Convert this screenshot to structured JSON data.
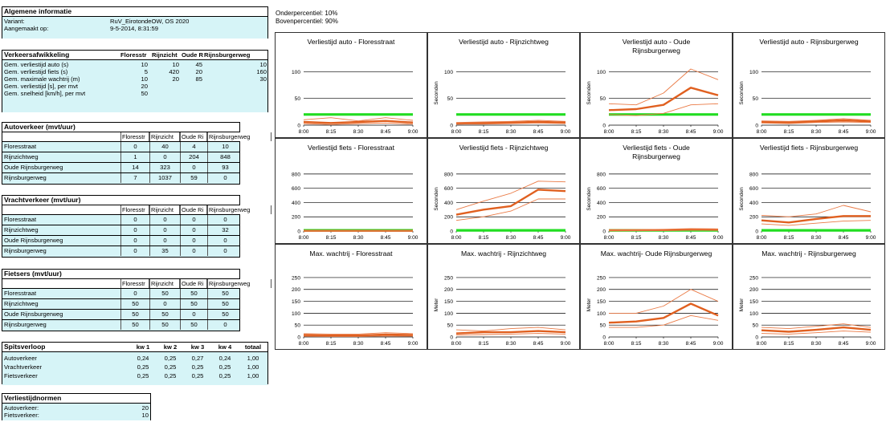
{
  "general": {
    "title": "Algemene informatie",
    "rows": [
      {
        "label": "Variant:",
        "value": "RuV_EirotondeOW, OS 2020"
      },
      {
        "label": "Aangemaakt op:",
        "value": "9-5-2014, 8:31:59"
      }
    ]
  },
  "percentiles": {
    "lower": "Onderpercentiel: 10%",
    "upper": "Bovenpercentiel: 90%"
  },
  "traffic": {
    "title": "Verkeersafwikkeling",
    "columns": [
      "Floresstr",
      "Rijnzicht",
      "Oude R",
      "Rijnsburgerweg"
    ],
    "rows": [
      {
        "label": "Gem. verliestijd auto (s)",
        "values": [
          "10",
          "10",
          "45",
          "10"
        ]
      },
      {
        "label": "Gem. verliestijd fiets (s)",
        "values": [
          "5",
          "420",
          "20",
          "160"
        ]
      },
      {
        "label": "Gem. maximale wachtrij (m)",
        "values": [
          "10",
          "20",
          "85",
          "30"
        ]
      },
      {
        "label": "Gem. verliestijd [s], per mvt",
        "values": [
          "20",
          "",
          "",
          ""
        ]
      },
      {
        "label": "Gem. snelheid [km/h], per mvt",
        "values": [
          "50",
          "",
          "",
          ""
        ]
      }
    ]
  },
  "matrices": [
    {
      "title": "Autoverkeer (mvt/uur)",
      "columns": [
        "Floresstr",
        "Rijnzicht",
        "Oude Ri",
        "Rijnsburgerweg"
      ],
      "rows": [
        {
          "label": "Floresstraat",
          "values": [
            "0",
            "40",
            "4",
            "10"
          ]
        },
        {
          "label": "Rijnzichtweg",
          "values": [
            "1",
            "0",
            "204",
            "848"
          ]
        },
        {
          "label": "Oude Rijnsburgerweg",
          "values": [
            "14",
            "323",
            "0",
            "93"
          ]
        },
        {
          "label": "Rijnsburgerweg",
          "values": [
            "7",
            "1037",
            "59",
            "0"
          ]
        }
      ]
    },
    {
      "title": "Vrachtverkeer (mvt/uur)",
      "columns": [
        "Floresstr",
        "Rijnzicht",
        "Oude Ri",
        "Rijnsburgerweg"
      ],
      "rows": [
        {
          "label": "Floresstraat",
          "values": [
            "0",
            "0",
            "0",
            "0"
          ]
        },
        {
          "label": "Rijnzichtweg",
          "values": [
            "0",
            "0",
            "0",
            "32"
          ]
        },
        {
          "label": "Oude Rijnsburgerweg",
          "values": [
            "0",
            "0",
            "0",
            "0"
          ]
        },
        {
          "label": "Rijnsburgerweg",
          "values": [
            "0",
            "35",
            "0",
            "0"
          ]
        }
      ]
    },
    {
      "title": "Fietsers (mvt/uur)",
      "columns": [
        "Floresstr",
        "Rijnzicht",
        "Oude Ri",
        "Rijnsburgerweg"
      ],
      "rows": [
        {
          "label": "Floresstraat",
          "values": [
            "0",
            "50",
            "50",
            "50"
          ]
        },
        {
          "label": "Rijnzichtweg",
          "values": [
            "50",
            "0",
            "50",
            "50"
          ]
        },
        {
          "label": "Oude Rijnsburgerweg",
          "values": [
            "50",
            "50",
            "0",
            "50"
          ]
        },
        {
          "label": "Rijnsburgerweg",
          "values": [
            "50",
            "50",
            "50",
            "0"
          ]
        }
      ]
    }
  ],
  "peak": {
    "title": "Spitsverloop",
    "columns": [
      "kw 1",
      "kw 2",
      "kw 3",
      "kw 4",
      "totaal"
    ],
    "rows": [
      {
        "label": "Autoverkeer",
        "values": [
          "0,24",
          "0,25",
          "0,27",
          "0,24",
          "1,00"
        ]
      },
      {
        "label": "Vrachtverkeer",
        "values": [
          "0,25",
          "0,25",
          "0,25",
          "0,25",
          "1,00"
        ]
      },
      {
        "label": "Fietsverkeer",
        "values": [
          "0,25",
          "0,25",
          "0,25",
          "0,25",
          "1,00"
        ]
      }
    ]
  },
  "norms": {
    "title": "Verliestijdnormen",
    "rows": [
      {
        "label": "Autoverkeer:",
        "value": "20"
      },
      {
        "label": "Fietsverkeer:",
        "value": "10"
      }
    ]
  },
  "colors": {
    "median": "#e06020",
    "percentile": "#ea7a45",
    "norm": "#22dd22",
    "grid": "#000000"
  },
  "chart_data": [
    {
      "type": "line",
      "title": "Verliestijd auto - Floresstraat",
      "xlabel": "",
      "ylabel": "",
      "ylim": [
        0,
        120
      ],
      "yticks": [
        0,
        50,
        100
      ],
      "norm": 20,
      "x": [
        "8:00",
        "8:15",
        "8:30",
        "8:45",
        "9:00"
      ],
      "series": [
        {
          "role": "median",
          "values": [
            6,
            4,
            6,
            8,
            5
          ]
        },
        {
          "role": "p90",
          "values": [
            10,
            14,
            8,
            14,
            9
          ]
        },
        {
          "role": "p10",
          "values": [
            3,
            1,
            3,
            4,
            2
          ]
        }
      ]
    },
    {
      "type": "line",
      "title": "Verliestijd auto - Rijnzichtweg",
      "xlabel": "",
      "ylabel": "Seconden",
      "ylim": [
        0,
        120
      ],
      "yticks": [
        0,
        50,
        100
      ],
      "norm": 20,
      "x": [
        "8:00",
        "8:15",
        "8:30",
        "8:45",
        "9:00"
      ],
      "series": [
        {
          "role": "median",
          "values": [
            3,
            4,
            5,
            6,
            5
          ]
        },
        {
          "role": "p90",
          "values": [
            5,
            6,
            7,
            9,
            7
          ]
        },
        {
          "role": "p10",
          "values": [
            2,
            2,
            3,
            4,
            3
          ]
        }
      ]
    },
    {
      "type": "line",
      "title": "Verliestijd auto - Oude Rijnsburgerweg",
      "xlabel": "",
      "ylabel": "Seconden",
      "ylim": [
        0,
        120
      ],
      "yticks": [
        0,
        50,
        100
      ],
      "norm": 20,
      "x": [
        "8:00",
        "8:15",
        "8:30",
        "8:45",
        "9:00"
      ],
      "series": [
        {
          "role": "median",
          "values": [
            28,
            30,
            38,
            70,
            56
          ]
        },
        {
          "role": "p90",
          "values": [
            40,
            38,
            60,
            105,
            85
          ]
        },
        {
          "role": "p10",
          "values": [
            20,
            18,
            22,
            38,
            40
          ]
        }
      ]
    },
    {
      "type": "line",
      "title": "Verliestijd auto - Rijnsburgerweg",
      "xlabel": "",
      "ylabel": "Seconden",
      "ylim": [
        0,
        120
      ],
      "yticks": [
        0,
        50,
        100
      ],
      "norm": 20,
      "x": [
        "8:00",
        "8:15",
        "8:30",
        "8:45",
        "9:00"
      ],
      "series": [
        {
          "role": "median",
          "values": [
            6,
            5,
            7,
            9,
            7
          ]
        },
        {
          "role": "p90",
          "values": [
            8,
            7,
            9,
            12,
            9
          ]
        },
        {
          "role": "p10",
          "values": [
            4,
            3,
            5,
            6,
            5
          ]
        }
      ]
    },
    {
      "type": "line",
      "title": "Verliestijd fiets - Floresstraat",
      "xlabel": "",
      "ylabel": "",
      "ylim": [
        0,
        900
      ],
      "yticks": [
        0,
        200,
        400,
        600,
        800
      ],
      "norm": 10,
      "x": [
        "8:00",
        "8:15",
        "8:30",
        "8:45",
        "9:00"
      ],
      "series": [
        {
          "role": "median",
          "values": [
            3,
            3,
            3,
            3,
            3
          ]
        },
        {
          "role": "p90",
          "values": [
            5,
            5,
            5,
            5,
            5
          ]
        },
        {
          "role": "p10",
          "values": [
            1,
            1,
            1,
            1,
            1
          ]
        }
      ]
    },
    {
      "type": "line",
      "title": "Verliestijd fiets - Rijnzichtweg",
      "xlabel": "",
      "ylabel": "Seconden",
      "ylim": [
        0,
        900
      ],
      "yticks": [
        0,
        200,
        400,
        600,
        800
      ],
      "norm": 10,
      "x": [
        "8:00",
        "8:15",
        "8:30",
        "8:45",
        "9:00"
      ],
      "series": [
        {
          "role": "median",
          "values": [
            230,
            300,
            350,
            580,
            560
          ]
        },
        {
          "role": "p90",
          "values": [
            300,
            420,
            530,
            700,
            690
          ]
        },
        {
          "role": "p10",
          "values": [
            150,
            200,
            280,
            450,
            450
          ]
        }
      ]
    },
    {
      "type": "line",
      "title": "Verliestijd fiets - Oude Rijnsburgerweg",
      "xlabel": "",
      "ylabel": "Seconden",
      "ylim": [
        0,
        900
      ],
      "yticks": [
        0,
        200,
        400,
        600,
        800
      ],
      "norm": 10,
      "x": [
        "8:00",
        "8:15",
        "8:30",
        "8:45",
        "9:00"
      ],
      "series": [
        {
          "role": "median",
          "values": [
            10,
            12,
            14,
            20,
            18
          ]
        },
        {
          "role": "p90",
          "values": [
            20,
            20,
            25,
            35,
            30
          ]
        },
        {
          "role": "p10",
          "values": [
            5,
            5,
            8,
            10,
            10
          ]
        }
      ]
    },
    {
      "type": "line",
      "title": "Verliestijd fiets - Rijnsburgerweg",
      "xlabel": "",
      "ylabel": "Seconden",
      "ylim": [
        0,
        900
      ],
      "yticks": [
        0,
        200,
        400,
        600,
        800
      ],
      "norm": 10,
      "x": [
        "8:00",
        "8:15",
        "8:30",
        "8:45",
        "9:00"
      ],
      "series": [
        {
          "role": "median",
          "values": [
            150,
            120,
            170,
            210,
            210
          ]
        },
        {
          "role": "p90",
          "values": [
            220,
            200,
            240,
            360,
            270
          ]
        },
        {
          "role": "p10",
          "values": [
            100,
            80,
            110,
            140,
            150
          ]
        }
      ]
    },
    {
      "type": "line",
      "title": "Max. wachtrij - Floresstraat",
      "xlabel": "",
      "ylabel": "",
      "ylim": [
        0,
        270
      ],
      "yticks": [
        0,
        50,
        100,
        150,
        200,
        250
      ],
      "x": [
        "8:00",
        "8:15",
        "8:30",
        "8:45",
        "9:00"
      ],
      "series": [
        {
          "role": "median",
          "values": [
            8,
            6,
            6,
            10,
            8
          ]
        },
        {
          "role": "p90",
          "values": [
            14,
            12,
            12,
            18,
            14
          ]
        },
        {
          "role": "p10",
          "values": [
            3,
            2,
            2,
            4,
            3
          ]
        }
      ]
    },
    {
      "type": "line",
      "title": "Max. wachtrij - Rijnzichtweg",
      "xlabel": "",
      "ylabel": "Meter",
      "ylim": [
        0,
        270
      ],
      "yticks": [
        0,
        50,
        100,
        150,
        200,
        250
      ],
      "x": [
        "8:00",
        "8:15",
        "8:30",
        "8:45",
        "9:00"
      ],
      "series": [
        {
          "role": "median",
          "values": [
            15,
            20,
            20,
            25,
            20
          ]
        },
        {
          "role": "p90",
          "values": [
            30,
            25,
            35,
            40,
            30
          ]
        },
        {
          "role": "p10",
          "values": [
            8,
            10,
            12,
            15,
            12
          ]
        }
      ]
    },
    {
      "type": "line",
      "title": "Max. wachtrij- Oude Rijnsburgerweg",
      "xlabel": "",
      "ylabel": "Meter",
      "ylim": [
        0,
        270
      ],
      "yticks": [
        0,
        50,
        100,
        150,
        200,
        250
      ],
      "x": [
        "8:00",
        "8:15",
        "8:30",
        "8:45",
        "9:00"
      ],
      "series": [
        {
          "role": "median",
          "values": [
            60,
            65,
            80,
            140,
            90
          ]
        },
        {
          "role": "p90",
          "values": [
            100,
            100,
            130,
            200,
            150
          ]
        },
        {
          "role": "p10",
          "values": [
            40,
            40,
            50,
            90,
            70
          ]
        }
      ]
    },
    {
      "type": "line",
      "title": "Max. wachtrij - Rijnsburgerweg",
      "xlabel": "",
      "ylabel": "Meter",
      "ylim": [
        0,
        270
      ],
      "yticks": [
        0,
        50,
        100,
        150,
        200,
        250
      ],
      "x": [
        "8:00",
        "8:15",
        "8:30",
        "8:45",
        "9:00"
      ],
      "series": [
        {
          "role": "median",
          "values": [
            28,
            22,
            30,
            40,
            30
          ]
        },
        {
          "role": "p90",
          "values": [
            40,
            35,
            45,
            55,
            40
          ]
        },
        {
          "role": "p10",
          "values": [
            15,
            12,
            18,
            25,
            20
          ]
        }
      ]
    }
  ]
}
